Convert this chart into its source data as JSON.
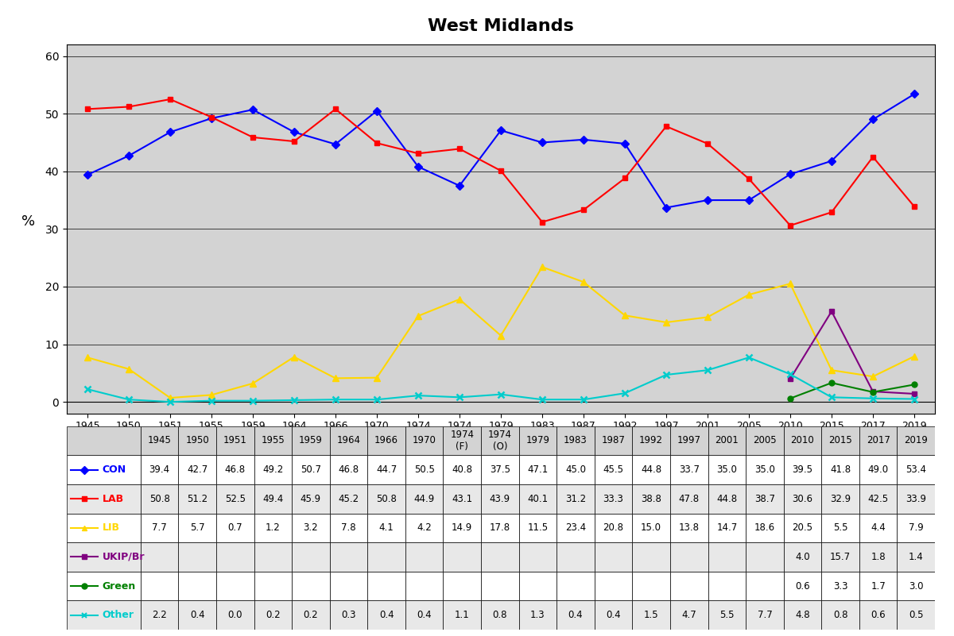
{
  "title": "West Midlands",
  "ylabel": "%",
  "years": [
    "1945",
    "1950",
    "1951",
    "1955",
    "1959",
    "1964",
    "1966",
    "1970",
    "1974\n(F)",
    "1974\n(O)",
    "1979",
    "1983",
    "1987",
    "1992",
    "1997",
    "2001",
    "2005",
    "2010",
    "2015",
    "2017",
    "2019"
  ],
  "x_positions": [
    0,
    1,
    2,
    3,
    4,
    5,
    6,
    7,
    8,
    9,
    10,
    11,
    12,
    13,
    14,
    15,
    16,
    17,
    18,
    19,
    20
  ],
  "CON": [
    39.4,
    42.7,
    46.8,
    49.2,
    50.7,
    46.8,
    44.7,
    50.5,
    40.8,
    37.5,
    47.1,
    45.0,
    45.5,
    44.8,
    33.7,
    35.0,
    35.0,
    39.5,
    41.8,
    49.0,
    53.4
  ],
  "LAB": [
    50.8,
    51.2,
    52.5,
    49.4,
    45.9,
    45.2,
    50.8,
    44.9,
    43.1,
    43.9,
    40.1,
    31.2,
    33.3,
    38.8,
    47.8,
    44.8,
    38.7,
    30.6,
    32.9,
    42.5,
    33.9
  ],
  "LIB": [
    7.7,
    5.7,
    0.7,
    1.2,
    3.2,
    7.8,
    4.1,
    4.2,
    14.9,
    17.8,
    11.5,
    23.4,
    20.8,
    15.0,
    13.8,
    14.7,
    18.6,
    20.5,
    5.5,
    4.4,
    7.9
  ],
  "UKIP": [
    null,
    null,
    null,
    null,
    null,
    null,
    null,
    null,
    null,
    null,
    null,
    null,
    null,
    null,
    null,
    null,
    null,
    4.0,
    15.7,
    1.8,
    1.4
  ],
  "Green": [
    null,
    null,
    null,
    null,
    null,
    null,
    null,
    null,
    null,
    null,
    null,
    null,
    null,
    null,
    null,
    null,
    null,
    0.6,
    3.3,
    1.7,
    3.0
  ],
  "Other": [
    2.2,
    0.4,
    0.0,
    0.2,
    0.2,
    0.3,
    0.4,
    0.4,
    1.1,
    0.8,
    1.3,
    0.4,
    0.4,
    1.5,
    4.7,
    5.5,
    7.7,
    4.8,
    0.8,
    0.6,
    0.5
  ],
  "CON_color": "#0000FF",
  "LAB_color": "#FF0000",
  "LIB_color": "#FFD700",
  "UKIP_color": "#800080",
  "Green_color": "#008000",
  "Other_color": "#00CCCC",
  "ylim": [
    -2,
    62
  ],
  "yticks": [
    0,
    10,
    20,
    30,
    40,
    50,
    60
  ],
  "plot_bg": "#D3D3D3",
  "title_fontsize": 16,
  "axis_label_fontsize": 13,
  "row_names": [
    "CON",
    "LAB",
    "LIB",
    "UKIP/Br",
    "Green",
    "Other"
  ],
  "row_bg_colors": [
    "white",
    "white",
    "white",
    "#D3D3D3",
    "white",
    "#D3D3D3"
  ],
  "table_header_bg": "#D3D3D3"
}
